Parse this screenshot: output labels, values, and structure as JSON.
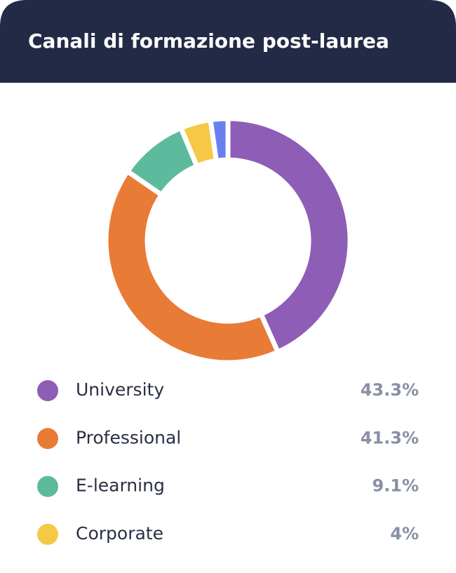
{
  "chart_data": {
    "type": "donut",
    "title": "Canali di formazione post-laurea",
    "categories": [
      "University",
      "Professional",
      "E-learning",
      "Corporate",
      null
    ],
    "values": [
      43.3,
      41.3,
      9.1,
      4,
      2.3
    ],
    "value_labels": [
      "43.3%",
      "41.3%",
      "9.1%",
      "4%",
      null
    ],
    "colors": [
      "#8e5db5",
      "#e87b36",
      "#5cbb9c",
      "#f5c945",
      "#6b80f0"
    ]
  }
}
